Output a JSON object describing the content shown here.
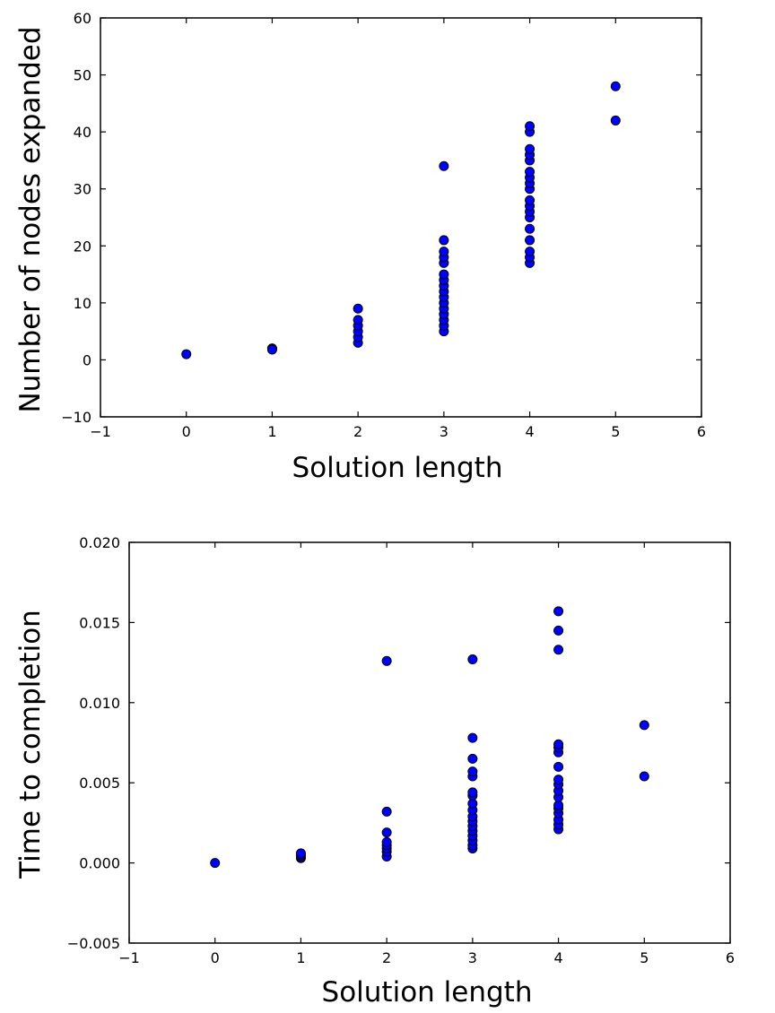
{
  "chart_data": [
    {
      "type": "scatter",
      "title": "",
      "xlabel": "Solution length",
      "ylabel": "Number of nodes expanded",
      "xlim": [
        -1,
        6
      ],
      "ylim": [
        -10,
        60
      ],
      "xticks": [
        "−1",
        "0",
        "1",
        "2",
        "3",
        "4",
        "5",
        "6"
      ],
      "yticks": [
        "−10",
        "0",
        "10",
        "20",
        "30",
        "40",
        "50",
        "60"
      ],
      "grid": false,
      "marker_color": "#0000ff",
      "series": [
        {
          "points": [
            [
              0,
              1
            ],
            [
              1,
              2
            ],
            [
              1,
              2
            ],
            [
              1,
              1.8
            ],
            [
              2,
              3
            ],
            [
              2,
              4
            ],
            [
              2,
              5
            ],
            [
              2,
              6
            ],
            [
              2,
              7
            ],
            [
              2,
              9
            ],
            [
              3,
              5
            ],
            [
              3,
              6
            ],
            [
              3,
              7
            ],
            [
              3,
              8
            ],
            [
              3,
              9
            ],
            [
              3,
              10
            ],
            [
              3,
              11
            ],
            [
              3,
              12
            ],
            [
              3,
              13
            ],
            [
              3,
              14
            ],
            [
              3,
              15
            ],
            [
              3,
              17
            ],
            [
              3,
              18
            ],
            [
              3,
              19
            ],
            [
              3,
              21
            ],
            [
              3,
              34
            ],
            [
              4,
              17
            ],
            [
              4,
              18
            ],
            [
              4,
              19
            ],
            [
              4,
              21
            ],
            [
              4,
              23
            ],
            [
              4,
              25
            ],
            [
              4,
              26
            ],
            [
              4,
              27
            ],
            [
              4,
              28
            ],
            [
              4,
              30
            ],
            [
              4,
              31
            ],
            [
              4,
              32
            ],
            [
              4,
              33
            ],
            [
              4,
              35
            ],
            [
              4,
              36
            ],
            [
              4,
              37
            ],
            [
              4,
              40
            ],
            [
              4,
              41
            ],
            [
              5,
              42
            ],
            [
              5,
              48
            ]
          ]
        }
      ]
    },
    {
      "type": "scatter",
      "title": "",
      "xlabel": "Solution length",
      "ylabel": "Time to completion",
      "xlim": [
        -1,
        6
      ],
      "ylim": [
        -0.005,
        0.02
      ],
      "xticks": [
        "−1",
        "0",
        "1",
        "2",
        "3",
        "4",
        "5",
        "6"
      ],
      "yticks": [
        "−0.005",
        "0.000",
        "0.005",
        "0.010",
        "0.015",
        "0.020"
      ],
      "grid": false,
      "marker_color": "#0000ff",
      "series": [
        {
          "points": [
            [
              0,
              0.0
            ],
            [
              1,
              0.0003
            ],
            [
              1,
              0.0004
            ],
            [
              1,
              0.0005
            ],
            [
              1,
              0.0006
            ],
            [
              2,
              0.0004
            ],
            [
              2,
              0.0007
            ],
            [
              2,
              0.0009
            ],
            [
              2,
              0.0011
            ],
            [
              2,
              0.0013
            ],
            [
              2,
              0.0019
            ],
            [
              2,
              0.0032
            ],
            [
              2,
              0.0126
            ],
            [
              3,
              0.0009
            ],
            [
              3,
              0.0011
            ],
            [
              3,
              0.0014
            ],
            [
              3,
              0.0017
            ],
            [
              3,
              0.002
            ],
            [
              3,
              0.0023
            ],
            [
              3,
              0.0026
            ],
            [
              3,
              0.0029
            ],
            [
              3,
              0.0033
            ],
            [
              3,
              0.0037
            ],
            [
              3,
              0.0042
            ],
            [
              3,
              0.0044
            ],
            [
              3,
              0.0054
            ],
            [
              3,
              0.0057
            ],
            [
              3,
              0.0065
            ],
            [
              3,
              0.0078
            ],
            [
              3,
              0.0127
            ],
            [
              4,
              0.0021
            ],
            [
              4,
              0.0024
            ],
            [
              4,
              0.0027
            ],
            [
              4,
              0.0031
            ],
            [
              4,
              0.0034
            ],
            [
              4,
              0.0036
            ],
            [
              4,
              0.0041
            ],
            [
              4,
              0.0045
            ],
            [
              4,
              0.0049
            ],
            [
              4,
              0.0052
            ],
            [
              4,
              0.006
            ],
            [
              4,
              0.0069
            ],
            [
              4,
              0.0072
            ],
            [
              4,
              0.0074
            ],
            [
              4,
              0.0133
            ],
            [
              4,
              0.0145
            ],
            [
              4,
              0.0157
            ],
            [
              5,
              0.0054
            ],
            [
              5,
              0.0086
            ]
          ]
        }
      ]
    }
  ]
}
